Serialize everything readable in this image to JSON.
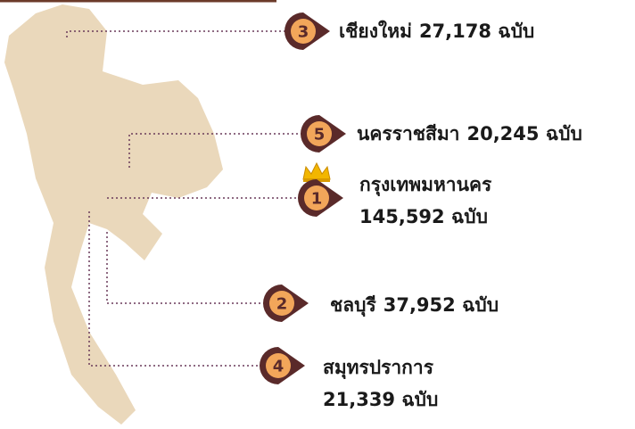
{
  "items": [
    {
      "rank": 3,
      "name": "เชียงใหม่",
      "count": "27,178 ฉบับ"
    },
    {
      "rank": 5,
      "name": "นครราชสีมา",
      "count": "20,245 ฉบับ"
    },
    {
      "rank": 1,
      "name": "กรุงเทพมหานคร",
      "count": "145,592 ฉบับ"
    },
    {
      "rank": 2,
      "name": "ชลบุรี",
      "count": "37,952 ฉบับ"
    },
    {
      "rank": 4,
      "name": "สมุทรปราการ",
      "count": "21,339 ฉบับ"
    }
  ]
}
